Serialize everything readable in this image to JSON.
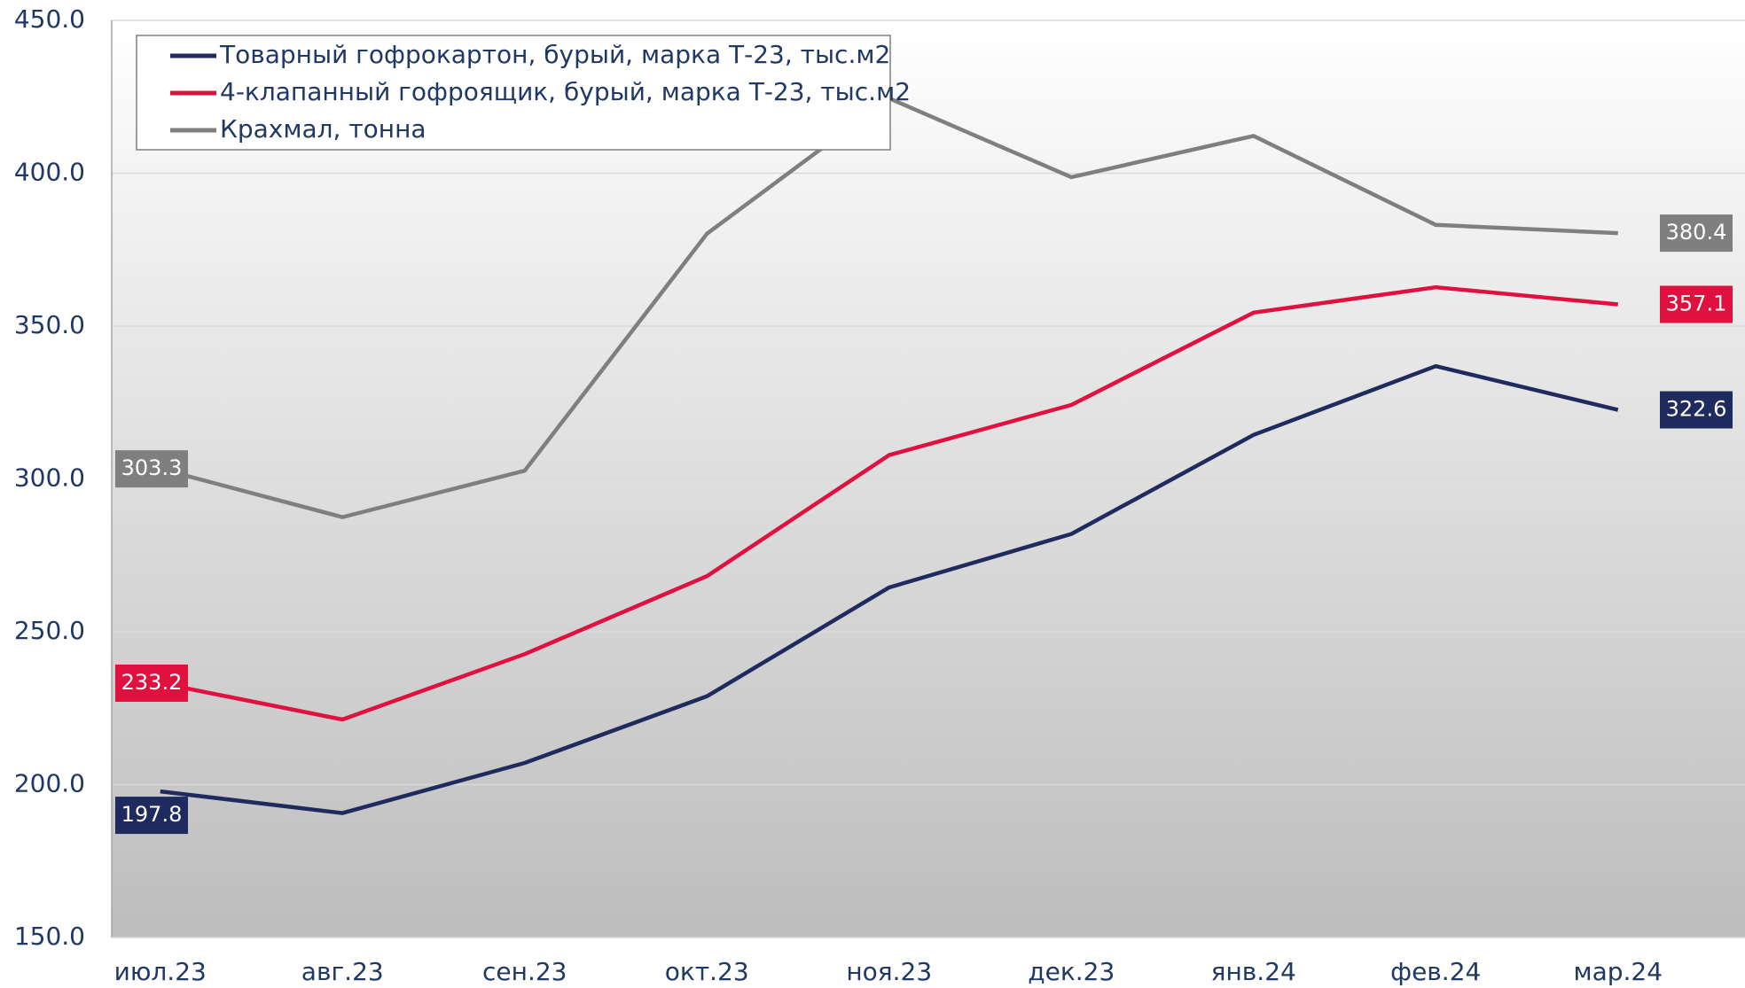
{
  "chart_data": {
    "type": "line",
    "categories": [
      "июл.23",
      "авг.23",
      "сен.23",
      "окт.23",
      "ноя.23",
      "дек.23",
      "янв.24",
      "фев.24",
      "мар.24"
    ],
    "series": [
      {
        "name": "Товарный гофрокартон, бурый, марка Т-23, тыс.м2",
        "color": "#1f2a5e",
        "values": [
          197.8,
          190.7,
          207.1,
          228.9,
          264.5,
          282.0,
          314.4,
          336.9,
          322.6
        ]
      },
      {
        "name": "4-клапанный гофроящик, бурый, марка Т-23, тыс.м2",
        "color": "#e0103f",
        "values": [
          233.2,
          221.3,
          242.7,
          268.2,
          307.8,
          324.2,
          354.4,
          362.7,
          357.1
        ]
      },
      {
        "name": "Крахмал, тонна",
        "color": "#7f7f7f",
        "values": [
          303.3,
          287.5,
          302.7,
          380.2,
          424.5,
          398.7,
          412.2,
          383.1,
          380.4
        ]
      }
    ],
    "ylim": [
      150,
      450
    ],
    "yticks": [
      {
        "value": 150,
        "label": "150.0"
      },
      {
        "value": 200,
        "label": "200.0"
      },
      {
        "value": 250,
        "label": "250.0"
      },
      {
        "value": 300,
        "label": "300.0"
      },
      {
        "value": 350,
        "label": "350.0"
      },
      {
        "value": 400,
        "label": "400.0"
      },
      {
        "value": 450,
        "label": "450.0"
      }
    ],
    "grid": true,
    "legend": "top-left"
  }
}
